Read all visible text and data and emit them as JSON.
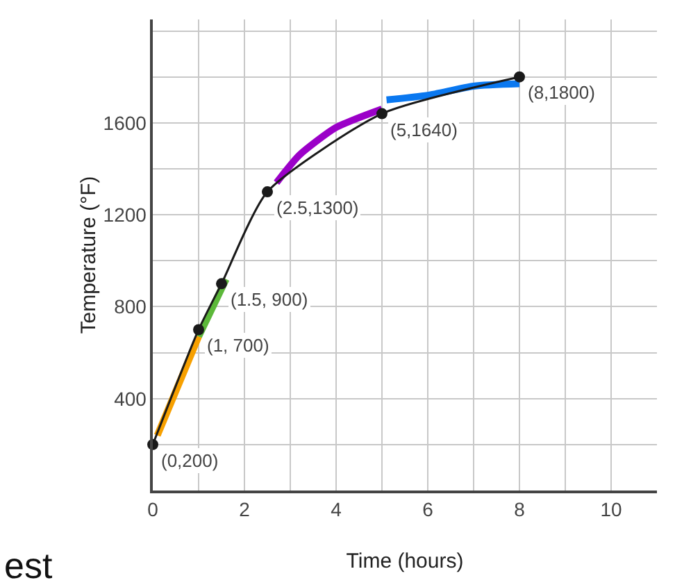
{
  "chart_data": {
    "type": "line",
    "xlabel": "Time (hours)",
    "ylabel": "Temperature (°F)",
    "xlim": [
      0,
      11
    ],
    "ylim": [
      0,
      2050
    ],
    "xticks": [
      0,
      {
        "value": 1,
        "label": null
      },
      2,
      {
        "value": 3,
        "label": null
      },
      4,
      {
        "value": 5,
        "label": null
      },
      6,
      {
        "value": 7,
        "label": null
      },
      8,
      {
        "value": 9,
        "label": null
      },
      10
    ],
    "yticks": [
      {
        "value": 200,
        "label": null
      },
      400,
      {
        "value": 600,
        "label": null
      },
      800,
      {
        "value": 1000,
        "label": null
      },
      1200,
      {
        "value": 1400,
        "label": null
      },
      1600,
      {
        "value": 1800,
        "label": null
      },
      {
        "value": 2000,
        "label": null
      }
    ],
    "grid": true,
    "marker": "circle",
    "line_style": "solid",
    "series": [
      {
        "color": "#1a1a1a",
        "x": [
          0,
          1,
          1.5,
          2.5,
          5,
          8
        ],
        "values": [
          200,
          700,
          900,
          1300,
          1640,
          1800
        ]
      },
      {
        "color": "#f7a000",
        "marker": "none",
        "x": [
          0.1,
          1
        ],
        "values": [
          240,
          670
        ]
      },
      {
        "color": "#5cb83a",
        "marker": "none",
        "x": [
          1,
          1.6
        ],
        "values": [
          670,
          920
        ]
      },
      {
        "color": "#9b00c8",
        "marker": "none",
        "x": [
          2.7,
          3.2,
          4,
          5
        ],
        "values": [
          1340,
          1460,
          1580,
          1660
        ]
      },
      {
        "color": "#0a78f0",
        "marker": "none",
        "x": [
          5.1,
          6,
          7,
          8
        ],
        "values": [
          1700,
          1720,
          1760,
          1770
        ]
      }
    ],
    "annotations": [
      {
        "text": "(0,200)",
        "x": 0,
        "y": 200
      },
      {
        "text": "(1, 700)",
        "x": 1,
        "y": 700
      },
      {
        "text": "(1.5, 900)",
        "x": 1.5,
        "y": 900
      },
      {
        "text": "(2.5,1300)",
        "x": 2.5,
        "y": 1300
      },
      {
        "text": "(5,1640)",
        "x": 5,
        "y": 1640
      },
      {
        "text": "(8,1800)",
        "x": 8,
        "y": 1800
      },
      "est"
    ]
  }
}
